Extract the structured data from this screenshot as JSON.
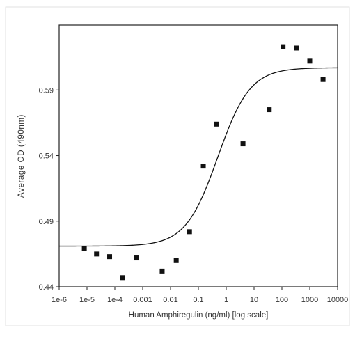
{
  "chart_data": {
    "type": "scatter",
    "xlabel": "Human Amphiregulin (ng/ml) [log scale]",
    "ylabel": "Average OD (490nm)",
    "x_scale": "log",
    "xlim": [
      1e-06,
      10000
    ],
    "ylim": [
      0.44,
      0.6395
    ],
    "x_tick_values": [
      1e-06,
      1e-05,
      0.0001,
      0.001,
      0.01,
      0.1,
      1,
      10,
      100,
      1000,
      10000
    ],
    "x_tick_labels": [
      "1e-6",
      "1e-5",
      "1e-4",
      "0.001",
      "0.01",
      "0.1",
      "1",
      "10",
      "100",
      "1000",
      "10000"
    ],
    "y_tick_values": [
      0.44,
      0.49,
      0.54,
      0.59
    ],
    "y_tick_labels": [
      "0.44",
      "0.49",
      "0.54",
      "0.59"
    ],
    "grid": false,
    "colors": {
      "marker": "#111111",
      "curve": "#111111",
      "axis": "#222222"
    },
    "series": [
      {
        "marker": "square",
        "x": [
          8e-06,
          2.2e-05,
          6.5e-05,
          0.00019,
          0.00058,
          0.005,
          0.016,
          0.048,
          0.15,
          0.45,
          4,
          35,
          110,
          330,
          1000,
          3000
        ],
        "y": [
          0.469,
          0.465,
          0.463,
          0.447,
          0.462,
          0.452,
          0.46,
          0.482,
          0.532,
          0.564,
          0.549,
          0.575,
          0.623,
          0.622,
          0.612,
          0.598
        ]
      }
    ],
    "fit_curve": {
      "model": "4-parameter logistic",
      "bottom": 0.471,
      "top": 0.607,
      "ec50": 0.5,
      "hill": 0.75
    }
  }
}
